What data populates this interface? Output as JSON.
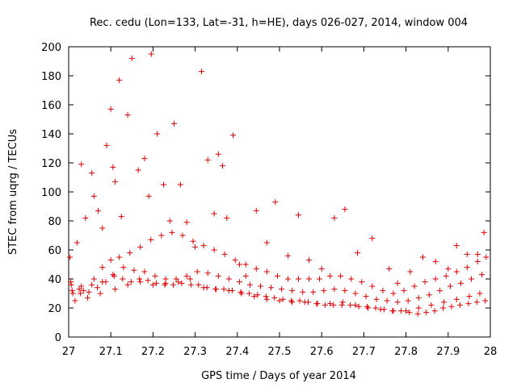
{
  "chart_data": {
    "type": "scatter",
    "title": "Rec. cedu (Lon=133, Lat=-31, h=HE), days 026-027, 2014, window 004",
    "xlabel": "GPS time / Days of year 2014",
    "ylabel": "STEC from uqrg / TECUs",
    "xlim": [
      27,
      28
    ],
    "ylim": [
      0,
      200
    ],
    "x_ticks": [
      "27",
      "27.1",
      "27.2",
      "27.3",
      "27.4",
      "27.5",
      "27.6",
      "27.7",
      "27.8",
      "27.9",
      "28"
    ],
    "y_ticks": [
      "0",
      "20",
      "40",
      "60",
      "80",
      "100",
      "120",
      "140",
      "160",
      "180",
      "200"
    ],
    "grid": false,
    "legend": "none",
    "marker": "+",
    "series": [
      {
        "color": "#dd0000",
        "x": [
          27.003,
          27.006,
          27.02,
          27.025,
          27.03,
          27.04,
          27.055,
          27.06,
          27.07,
          27.08,
          27.09,
          27.1,
          27.105,
          27.11,
          27.12,
          27.125,
          27.14,
          27.15,
          27.165,
          27.18,
          27.19,
          27.196,
          27.21,
          27.225,
          27.24,
          27.25,
          27.265,
          27.28,
          27.3,
          27.315,
          27.33,
          27.345,
          27.355,
          27.365,
          27.375,
          27.39,
          27.405,
          27.42,
          27.445,
          27.47,
          27.49,
          27.52,
          27.545,
          27.57,
          27.6,
          27.63,
          27.655,
          27.685,
          27.72,
          27.76,
          27.78,
          27.81,
          27.84,
          27.87,
          27.9,
          27.92,
          27.945,
          27.97,
          27.985,
          27.01,
          27.035,
          27.06,
          27.08,
          27.1,
          27.12,
          27.145,
          27.17,
          27.195,
          27.22,
          27.245,
          27.27,
          27.295,
          27.32,
          27.345,
          27.37,
          27.395,
          27.42,
          27.445,
          27.47,
          27.495,
          27.52,
          27.545,
          27.57,
          27.595,
          27.62,
          27.645,
          27.67,
          27.695,
          27.72,
          27.745,
          27.77,
          27.795,
          27.82,
          27.845,
          27.87,
          27.895,
          27.92,
          27.945,
          27.97,
          27.99,
          27.005,
          27.03,
          27.055,
          27.08,
          27.105,
          27.13,
          27.155,
          27.18,
          27.205,
          27.23,
          27.255,
          27.28,
          27.305,
          27.33,
          27.355,
          27.38,
          27.405,
          27.43,
          27.455,
          27.48,
          27.505,
          27.53,
          27.555,
          27.58,
          27.605,
          27.63,
          27.655,
          27.68,
          27.705,
          27.73,
          27.755,
          27.78,
          27.805,
          27.83,
          27.855,
          27.88,
          27.905,
          27.93,
          27.955,
          27.98,
          27.015,
          27.045,
          27.075,
          27.11,
          27.14,
          27.17,
          27.2,
          27.23,
          27.26,
          27.29,
          27.32,
          27.35,
          27.38,
          27.41,
          27.44,
          27.47,
          27.5,
          27.53,
          27.56,
          27.59,
          27.62,
          27.65,
          27.68,
          27.71,
          27.74,
          27.77,
          27.8,
          27.83,
          27.86,
          27.89,
          27.92,
          27.95,
          27.975,
          27.008,
          27.028,
          27.048,
          27.068,
          27.088,
          27.108,
          27.128,
          27.148,
          27.168,
          27.188,
          27.208,
          27.228,
          27.248,
          27.268,
          27.288,
          27.308,
          27.328,
          27.348,
          27.368,
          27.388,
          27.408,
          27.428,
          27.448,
          27.468,
          27.488,
          27.508,
          27.528,
          27.548,
          27.568,
          27.588,
          27.608,
          27.628,
          27.648,
          27.668,
          27.688,
          27.708,
          27.728,
          27.748,
          27.768,
          27.788,
          27.808,
          27.828,
          27.848,
          27.868,
          27.888,
          27.908,
          27.928,
          27.948,
          27.968,
          27.988
        ],
        "y": [
          55,
          36,
          65,
          33,
          119,
          82,
          113,
          97,
          87,
          75,
          132,
          157,
          117,
          107,
          177,
          83,
          153,
          192,
          115,
          123,
          97,
          195,
          140,
          105,
          80,
          147,
          105,
          79,
          62,
          183,
          122,
          85,
          126,
          118,
          82,
          139,
          50,
          42,
          87,
          65,
          93,
          56,
          84,
          53,
          47,
          82,
          88,
          58,
          68,
          47,
          37,
          45,
          55,
          52,
          47,
          63,
          57,
          57,
          72,
          30,
          32,
          40,
          48,
          53,
          55,
          58,
          62,
          67,
          70,
          72,
          70,
          66,
          63,
          60,
          57,
          53,
          50,
          47,
          45,
          42,
          40,
          40,
          40,
          40,
          42,
          42,
          40,
          38,
          35,
          32,
          30,
          32,
          35,
          38,
          40,
          42,
          45,
          48,
          52,
          55,
          38,
          35,
          36,
          38,
          43,
          48,
          46,
          45,
          42,
          40,
          40,
          42,
          45,
          44,
          42,
          40,
          38,
          36,
          35,
          34,
          33,
          32,
          31,
          31,
          32,
          33,
          32,
          30,
          28,
          26,
          25,
          24,
          25,
          27,
          29,
          32,
          35,
          37,
          40,
          43,
          25,
          27,
          30,
          33,
          36,
          38,
          36,
          37,
          38,
          36,
          34,
          33,
          32,
          30,
          28,
          26,
          25,
          24,
          24,
          23,
          23,
          24,
          22,
          20,
          19,
          18,
          18,
          20,
          22,
          24,
          26,
          28,
          30,
          32,
          30,
          31,
          34,
          38,
          42,
          40,
          38,
          40,
          39,
          37,
          36,
          36,
          37,
          40,
          36,
          34,
          33,
          33,
          32,
          31,
          30,
          29,
          28,
          27,
          26,
          25,
          25,
          24,
          23,
          22,
          22,
          22,
          22,
          21,
          21,
          20,
          19,
          18,
          18,
          17,
          16,
          17,
          18,
          20,
          21,
          22,
          23,
          24,
          25
        ]
      }
    ]
  }
}
